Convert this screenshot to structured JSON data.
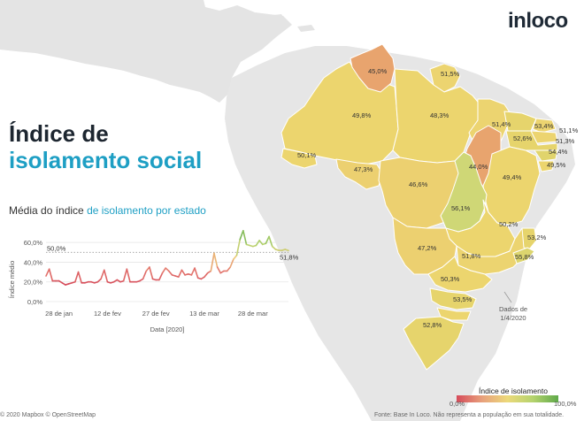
{
  "logo": "inloco",
  "title": {
    "line1": "Índice de",
    "line2": "isolamento social"
  },
  "subtitle": {
    "prefix": "Média do índice ",
    "highlight": "de isolamento por estado"
  },
  "chart_data": {
    "type": "line",
    "title": "Média do índice de isolamento por estado",
    "xlabel": "Data [2020]",
    "ylabel": "Índice médio",
    "ylim": [
      0,
      0.7
    ],
    "yticks": [
      "0,0%",
      "20,0%",
      "40,0%",
      "60,0%"
    ],
    "yticks_values": [
      0,
      0.2,
      0.4,
      0.6
    ],
    "xticks": [
      "28 de jan",
      "12 de fev",
      "27 de fev",
      "13 de mar",
      "28 de mar"
    ],
    "xticks_dates": [
      "2020-01-28",
      "2020-02-12",
      "2020-02-27",
      "2020-03-13",
      "2020-03-28"
    ],
    "reference_line": {
      "value": 0.5,
      "label": "50,0%"
    },
    "last_label": "51,8%",
    "series": [
      {
        "name": "Índice médio de isolamento",
        "start_date": "2020-01-24",
        "values": [
          0.26,
          0.33,
          0.21,
          0.21,
          0.21,
          0.19,
          0.17,
          0.18,
          0.19,
          0.2,
          0.3,
          0.19,
          0.19,
          0.2,
          0.2,
          0.19,
          0.2,
          0.23,
          0.32,
          0.2,
          0.19,
          0.2,
          0.22,
          0.2,
          0.21,
          0.33,
          0.2,
          0.2,
          0.2,
          0.21,
          0.23,
          0.31,
          0.35,
          0.23,
          0.22,
          0.22,
          0.29,
          0.34,
          0.31,
          0.27,
          0.26,
          0.25,
          0.32,
          0.27,
          0.28,
          0.27,
          0.34,
          0.24,
          0.23,
          0.25,
          0.29,
          0.31,
          0.49,
          0.35,
          0.29,
          0.31,
          0.31,
          0.35,
          0.43,
          0.47,
          0.63,
          0.72,
          0.58,
          0.57,
          0.56,
          0.57,
          0.62,
          0.58,
          0.59,
          0.66,
          0.56,
          0.53,
          0.52,
          0.52,
          0.53,
          0.518
        ]
      }
    ]
  },
  "map": {
    "states": [
      {
        "name": "Roraima",
        "value": "45,0%",
        "color": "#e8a46e"
      },
      {
        "name": "Amapá",
        "value": "51,5%",
        "color": "#ecd470"
      },
      {
        "name": "Amazonas",
        "value": "49,8%",
        "color": "#ecd56e"
      },
      {
        "name": "Pará",
        "value": "48,3%",
        "color": "#ecd56e"
      },
      {
        "name": "Maranhão",
        "value": "51,4%",
        "color": "#ecd470"
      },
      {
        "name": "Piauí",
        "value": "44,0%",
        "color": "#e8a46e"
      },
      {
        "name": "Ceará",
        "value": "53,4%",
        "color": "#e6d46c"
      },
      {
        "name": "Rio Grande do Norte",
        "value": "51,1%",
        "color": "#ecd470"
      },
      {
        "name": "Paraíba",
        "value": "51,3%",
        "color": "#ecd470"
      },
      {
        "name": "Pernambuco",
        "value": "52,6%",
        "color": "#e6d46c"
      },
      {
        "name": "Alagoas",
        "value": "54,4%",
        "color": "#e0d46c"
      },
      {
        "name": "Sergipe",
        "value": "49,5%",
        "color": "#ecd56e"
      },
      {
        "name": "Bahia",
        "value": "49,4%",
        "color": "#ecd56e"
      },
      {
        "name": "Acre",
        "value": "50,1%",
        "color": "#ecd56e"
      },
      {
        "name": "Rondônia",
        "value": "47,3%",
        "color": "#ecd070"
      },
      {
        "name": "Mato Grosso",
        "value": "46,6%",
        "color": "#ecd070"
      },
      {
        "name": "Tocantins",
        "value": "56,1%",
        "color": "#cfd776"
      },
      {
        "name": "Goiás",
        "value": "50,2%",
        "color": "#ecd56e"
      },
      {
        "name": "Mato Grosso do Sul",
        "value": "47,2%",
        "color": "#ecd070"
      },
      {
        "name": "Minas Gerais",
        "value": "51,8%",
        "color": "#ecd470"
      },
      {
        "name": "Espírito Santo",
        "value": "53,2%",
        "color": "#e6d46c"
      },
      {
        "name": "Rio de Janeiro",
        "value": "55,8%",
        "color": "#dcd56e"
      },
      {
        "name": "São Paulo",
        "value": "50,3%",
        "color": "#ecd56e"
      },
      {
        "name": "Paraná",
        "value": "53,5%",
        "color": "#e6d46c"
      },
      {
        "name": "Rio Grande do Sul",
        "value": "52,8%",
        "color": "#e6d46c"
      }
    ]
  },
  "date_note": {
    "line1": "Dados de",
    "line2": "1/4/2020"
  },
  "legend": {
    "title": "Índice de isolamento",
    "min_label": "0,0%",
    "max_label": "100,0%",
    "colors": [
      "#d64b5a",
      "#e8a07c",
      "#ecd97a",
      "#b5d36e",
      "#5fa94a"
    ]
  },
  "footer": {
    "attribution": "© 2020 Mapbox © OpenStreetMap",
    "source": "Fonte: Base In Loco. Não representa a população em sua totalidade."
  }
}
